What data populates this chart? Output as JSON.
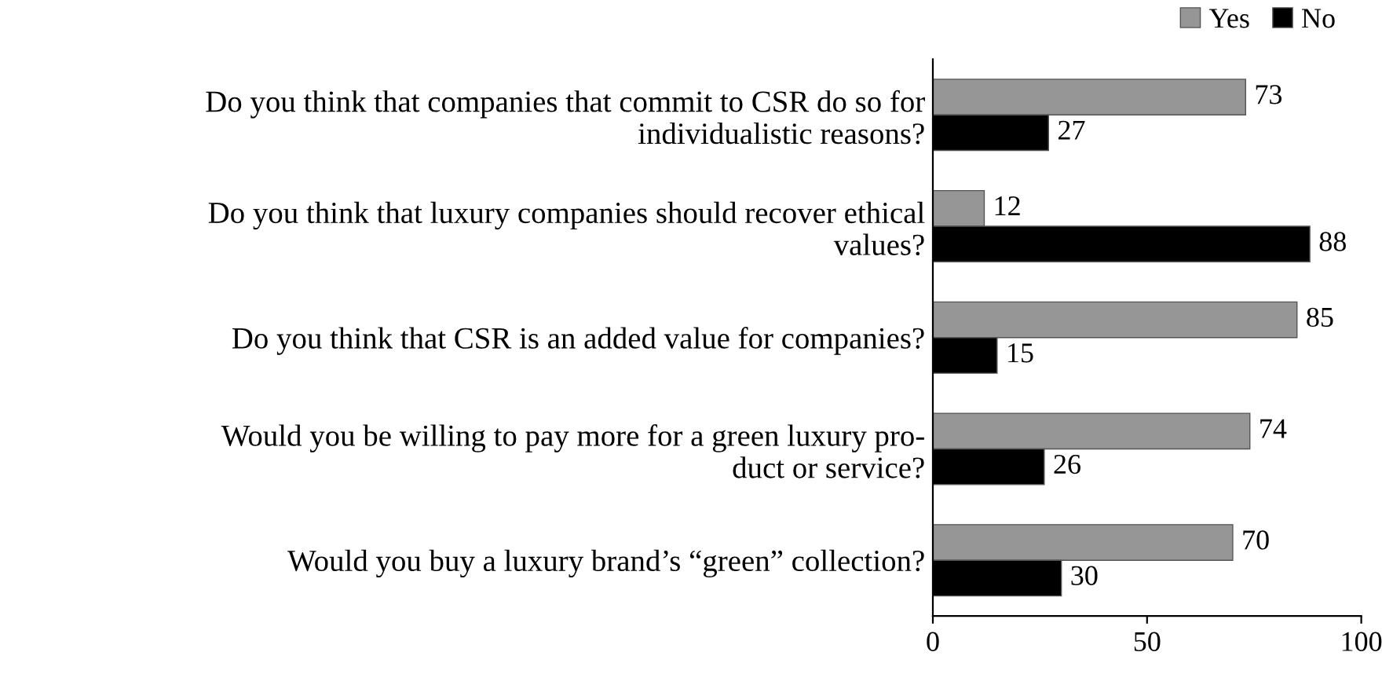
{
  "chart_data": {
    "type": "bar",
    "orientation": "horizontal",
    "categories": [
      "Do you think that companies that commit to CSR do so for\nindividualistic reasons?",
      "Do you think that luxury companies should recover ethical\nvalues?",
      "Do you think that CSR is an added value for companies?",
      "Would you be willing to pay more for a green luxury pro-\nduct or service?",
      "Would you buy a luxury brand’s “green” collection?"
    ],
    "series": [
      {
        "name": "Yes",
        "color": "#969696",
        "values": [
          73,
          12,
          85,
          74,
          70
        ]
      },
      {
        "name": "No",
        "color": "#000000",
        "values": [
          27,
          88,
          15,
          26,
          30
        ]
      }
    ],
    "xlim": [
      0,
      100
    ],
    "xticks": [
      0,
      50,
      100
    ],
    "data_labels": true,
    "legend": "top right",
    "grid": false
  }
}
